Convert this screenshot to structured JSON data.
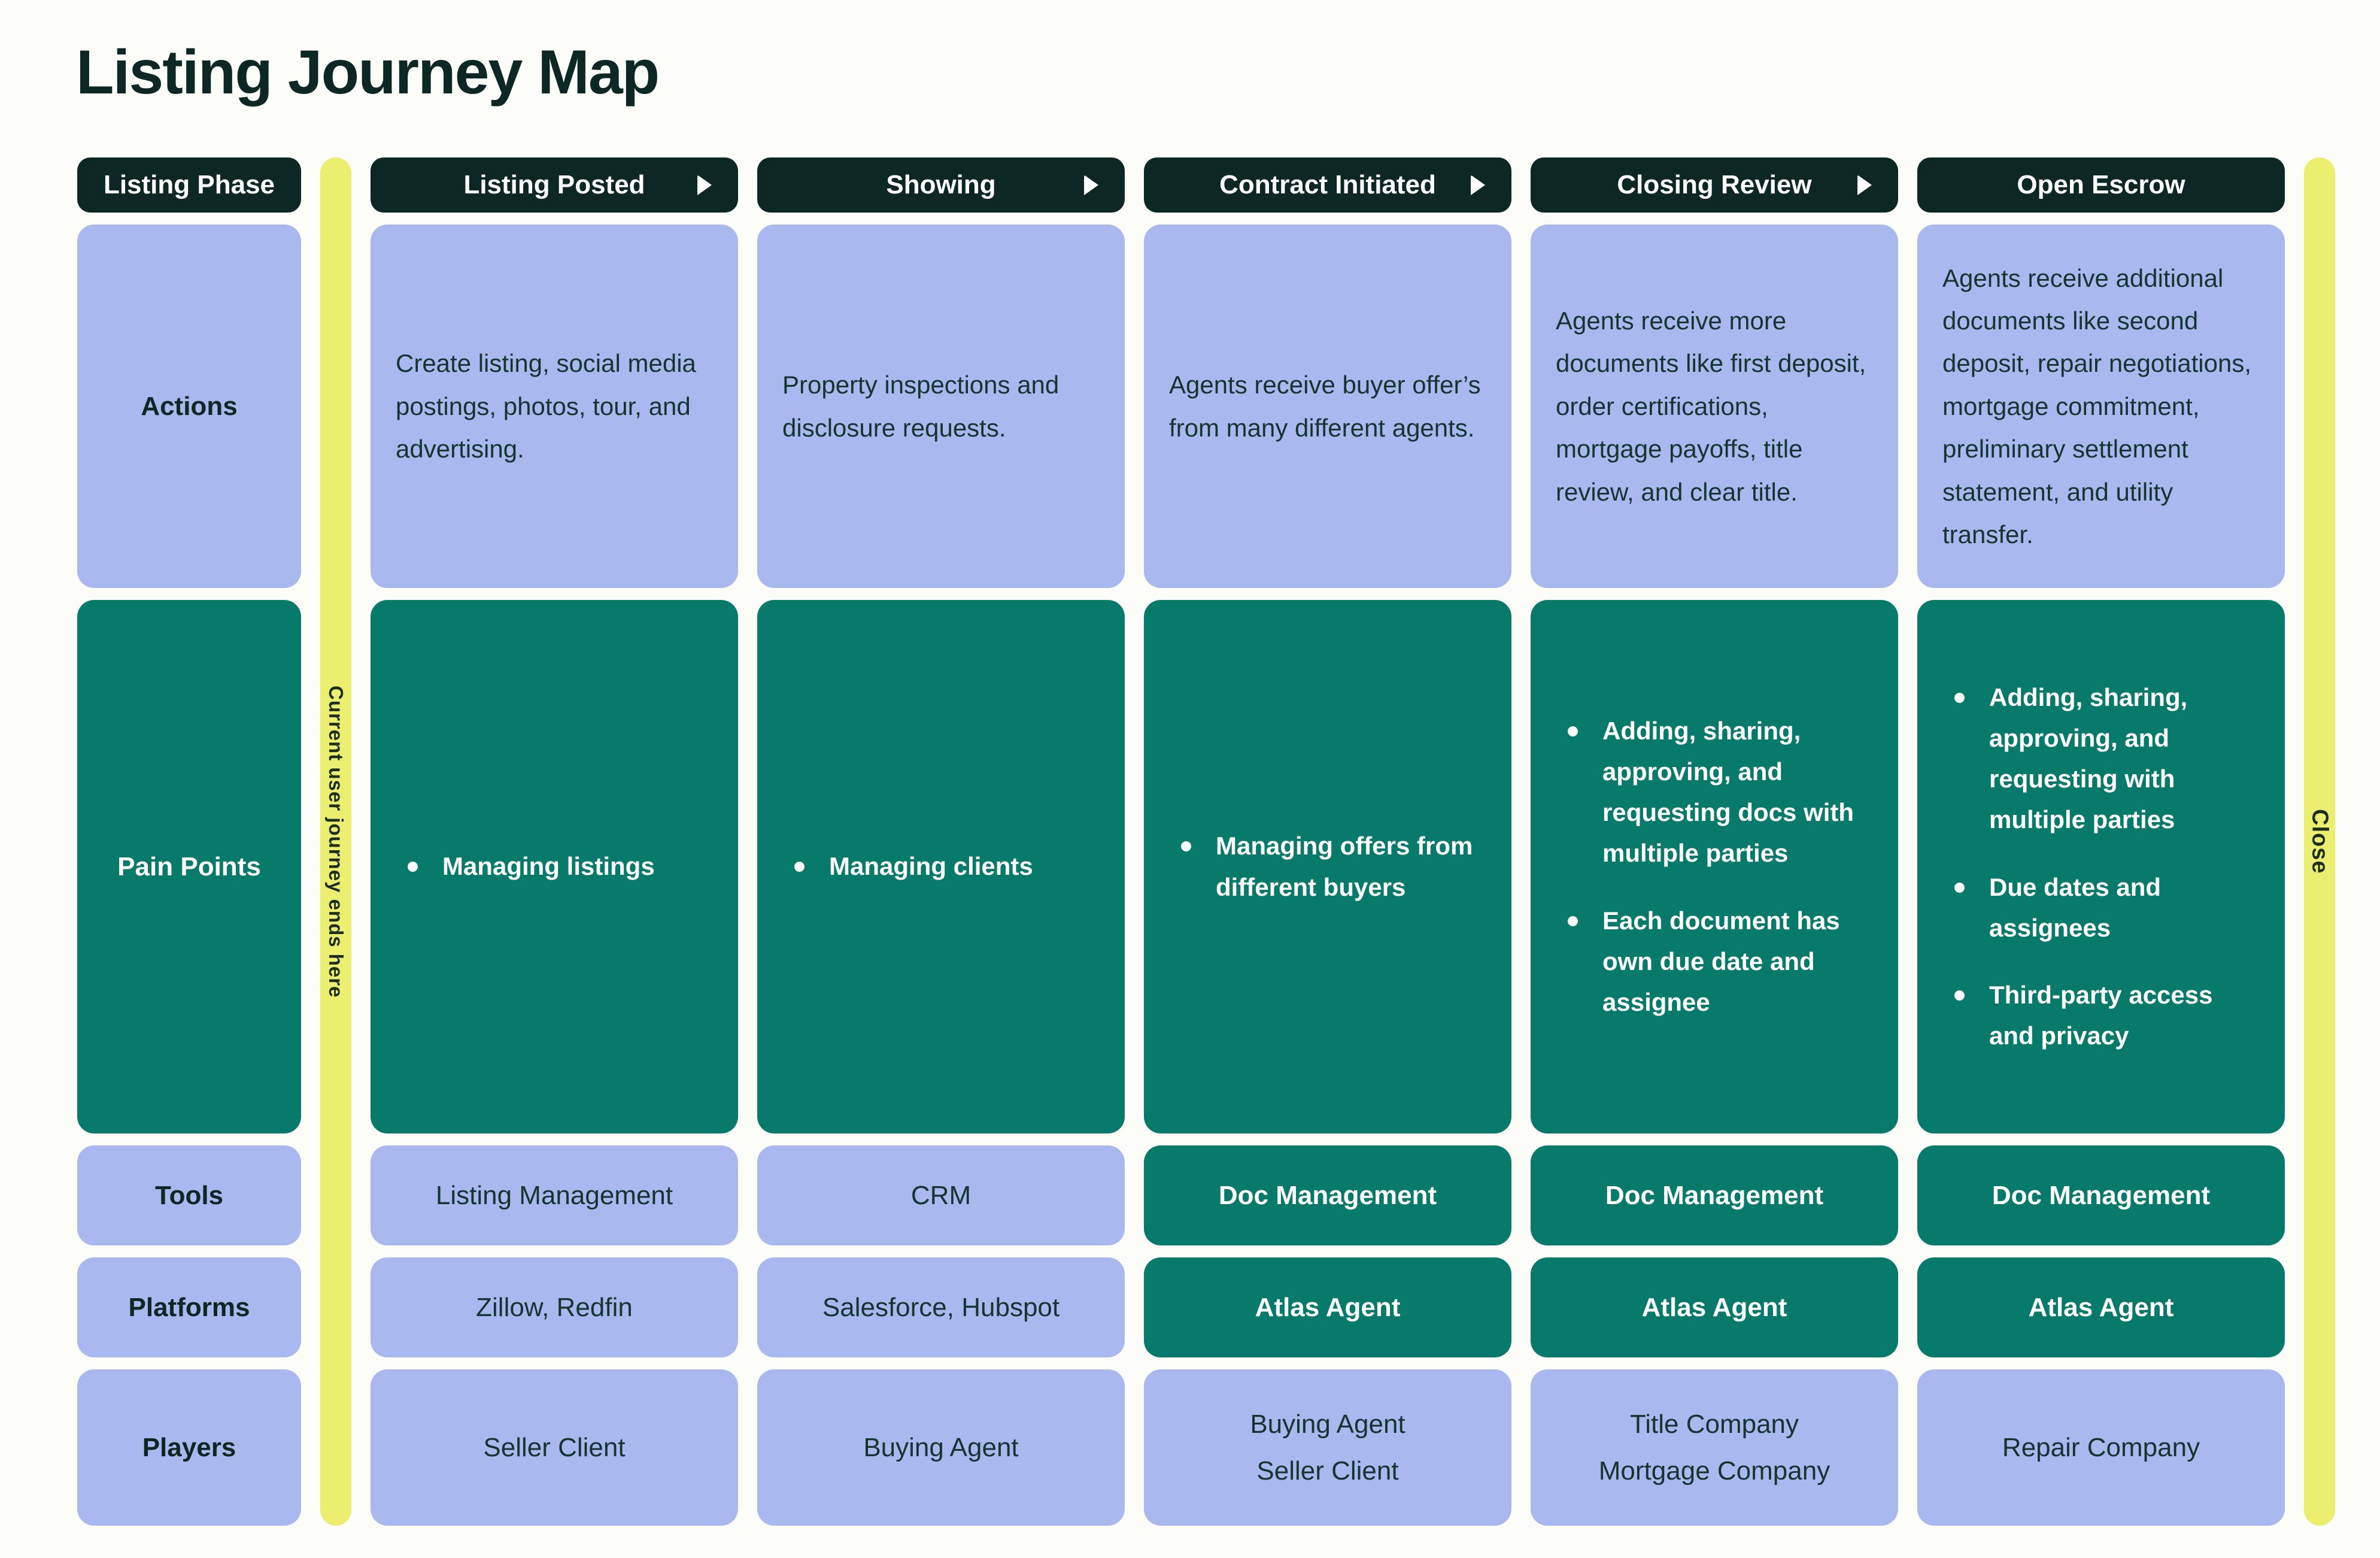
{
  "title": "Listing Journey Map",
  "row_labels": {
    "phase": "Listing Phase",
    "actions": "Actions",
    "pain_points": "Pain Points",
    "tools": "Tools",
    "platforms": "Platforms",
    "players": "Players"
  },
  "strips": {
    "left_label": "Current user journey ends here",
    "right_label": "Close"
  },
  "columns": [
    {
      "header": "Listing Posted",
      "actions": "Create listing, social media postings, photos, tour, and advertising.",
      "pain_points": [
        "Managing listings"
      ],
      "tools": "Listing Management",
      "platforms": "Zillow, Redfin",
      "players": [
        "Seller Client"
      ]
    },
    {
      "header": "Showing",
      "actions": "Property inspections and disclosure requests.",
      "pain_points": [
        "Managing clients"
      ],
      "tools": "CRM",
      "platforms": "Salesforce, Hubspot",
      "players": [
        "Buying Agent"
      ]
    },
    {
      "header": "Contract Initiated",
      "actions": "Agents receive buyer offer’s from many different agents.",
      "pain_points": [
        "Managing offers from different buyers"
      ],
      "tools": "Doc Management",
      "platforms": "Atlas Agent",
      "players": [
        "Buying Agent",
        "Seller Client"
      ]
    },
    {
      "header": "Closing Review",
      "actions": "Agents receive more documents like first deposit, order certifications, mortgage payoffs, title review, and clear title.",
      "pain_points": [
        "Adding, sharing, approving, and requesting docs with multiple parties",
        "Each document has own due date and assignee"
      ],
      "tools": "Doc Management",
      "platforms": "Atlas Agent",
      "players": [
        "Title Company",
        "Mortgage Company"
      ]
    },
    {
      "header": "Open Escrow",
      "actions": "Agents receive additional documents like second deposit, repair negotiations, mortgage commitment, preliminary settlement statement, and utility transfer.",
      "pain_points": [
        "Adding, sharing, approving, and requesting with multiple parties",
        "Due dates and assignees",
        "Third-party access and privacy"
      ],
      "tools": "Doc Management",
      "platforms": "Atlas Agent",
      "players": [
        "Repair Company"
      ]
    }
  ],
  "colors": {
    "header_dark": "#0d2824",
    "highlight_green": "#077a6b",
    "cell_periwinkle": "#a9b8ef",
    "strip_yellow": "#ebee6f",
    "background": "#fcfcf8",
    "body_text": "#143631"
  }
}
